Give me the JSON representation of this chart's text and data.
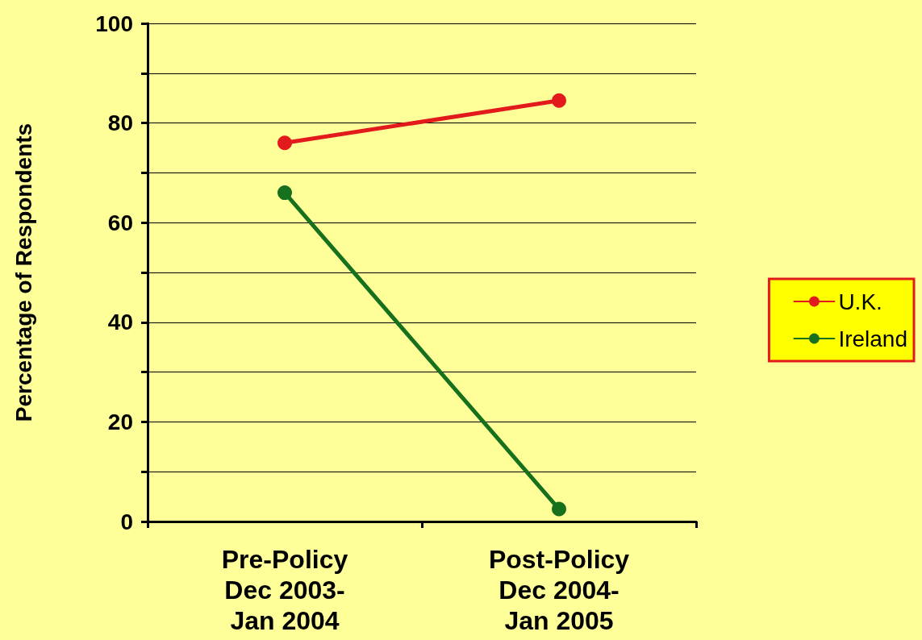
{
  "chart_data": {
    "type": "line",
    "ylabel": "Percentage of Respondents",
    "categories": [
      "Pre-Policy\nDec 2003-\nJan 2004",
      "Post-Policy\nDec 2004-\nJan 2005"
    ],
    "series": [
      {
        "name": "U.K.",
        "color": "#e31a1c",
        "values": [
          76,
          84.5
        ]
      },
      {
        "name": "Ireland",
        "color": "#16701c",
        "values": [
          66,
          2.5
        ]
      }
    ],
    "ylim": [
      0,
      100
    ],
    "yticks": [
      0,
      {
        "value": 10,
        "label": null
      },
      20,
      {
        "value": 30,
        "label": null
      },
      40,
      {
        "value": 50,
        "label": null
      },
      60,
      {
        "value": 70,
        "label": null
      },
      80,
      {
        "value": 90,
        "label": null
      },
      100
    ],
    "grid": "y",
    "legend": "right",
    "marker": "circle",
    "line_style": "solid"
  }
}
